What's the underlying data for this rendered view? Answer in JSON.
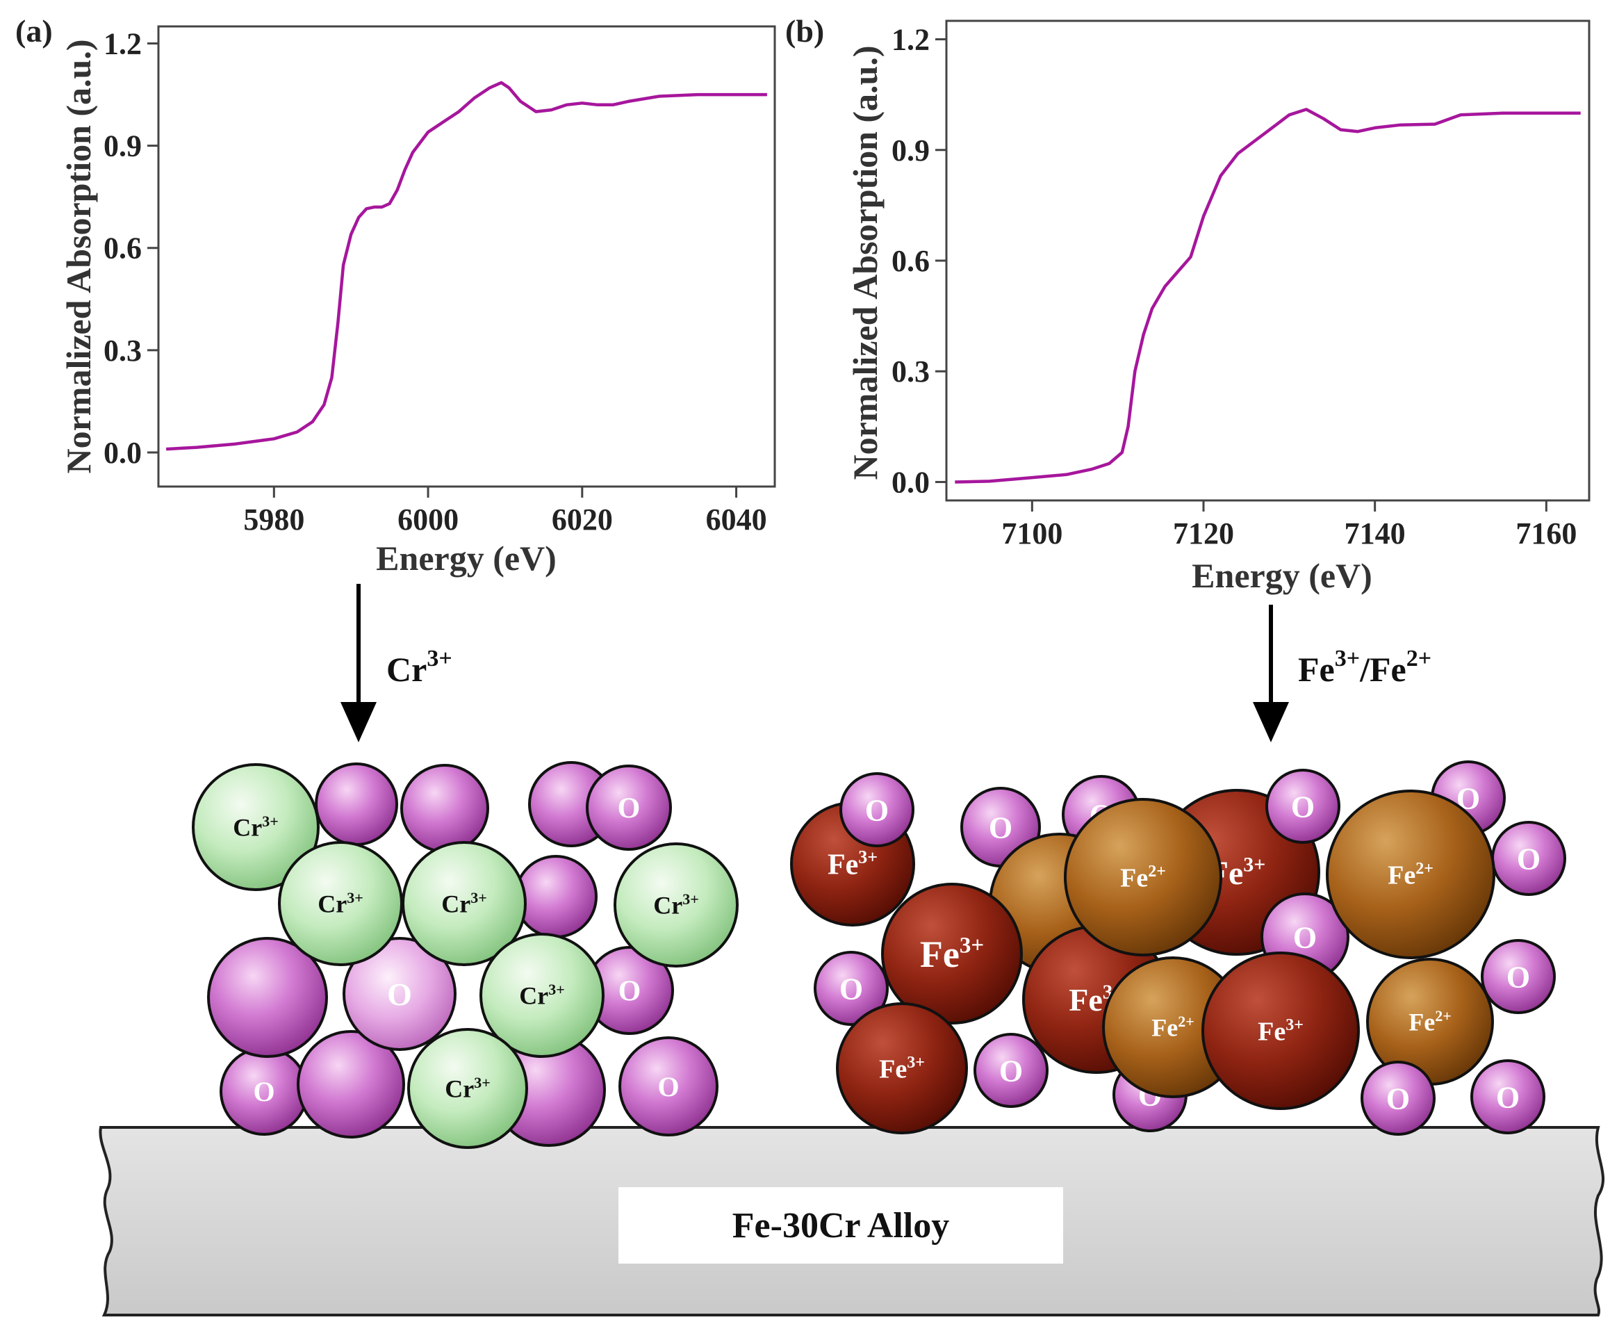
{
  "charts": {
    "a": {
      "panel_label": "(a)",
      "xlabel": "Energy (eV)",
      "ylabel": "Normalized Absorption (a.u.)"
    },
    "b": {
      "panel_label": "(b)",
      "xlabel": "Energy (eV)",
      "ylabel": "Normalized Absorption (a.u.)"
    }
  },
  "chart_data": [
    {
      "type": "line",
      "title": "",
      "xlabel": "Energy (eV)",
      "ylabel": "Normalized Absorption (a.u.)",
      "xlim": [
        5965,
        6045
      ],
      "ylim": [
        -0.1,
        1.25
      ],
      "xticks": [
        5980,
        6000,
        6020,
        6040
      ],
      "yticks": [
        0.0,
        0.3,
        0.6,
        0.9,
        1.2
      ],
      "ytick_labels": [
        "0.0",
        "0.3",
        "0.6",
        "0.9",
        "1.2"
      ],
      "grid": false,
      "color": "#a6169c",
      "series": [
        {
          "x": [
            5966,
            5970,
            5975,
            5980,
            5983,
            5985,
            5986.5,
            5987.5,
            5988.3,
            5989,
            5990,
            5991,
            5992,
            5993,
            5994,
            5995,
            5996,
            5997,
            5998,
            6000,
            6002,
            6004,
            6006,
            6008,
            6009.5,
            6010.5,
            6012,
            6014,
            6016,
            6018,
            6020,
            6022,
            6024,
            6026,
            6030,
            6035,
            6040,
            6044
          ],
          "y": [
            0.01,
            0.015,
            0.025,
            0.04,
            0.06,
            0.09,
            0.14,
            0.22,
            0.38,
            0.55,
            0.64,
            0.69,
            0.715,
            0.72,
            0.72,
            0.73,
            0.77,
            0.83,
            0.88,
            0.94,
            0.97,
            1.0,
            1.04,
            1.07,
            1.085,
            1.07,
            1.03,
            1.0,
            1.005,
            1.02,
            1.025,
            1.02,
            1.02,
            1.03,
            1.045,
            1.05,
            1.05,
            1.05
          ]
        }
      ]
    },
    {
      "type": "line",
      "title": "",
      "xlabel": "Energy (eV)",
      "ylabel": "Normalized Absorption (a.u.)",
      "xlim": [
        7090,
        7165
      ],
      "ylim": [
        -0.05,
        1.25
      ],
      "xticks": [
        7100,
        7120,
        7140,
        7160
      ],
      "yticks": [
        0.0,
        0.3,
        0.6,
        0.9,
        1.2
      ],
      "ytick_labels": [
        "0.0",
        "0.3",
        "0.6",
        "0.9",
        "1.2"
      ],
      "grid": false,
      "color": "#a6169c",
      "series": [
        {
          "x": [
            7091,
            7095,
            7098,
            7100,
            7104,
            7107,
            7109,
            7110.5,
            7111.2,
            7112,
            7113,
            7114,
            7115.5,
            7117,
            7118.5,
            7120,
            7122,
            7124,
            7126,
            7128,
            7130,
            7132,
            7134,
            7136,
            7138,
            7140,
            7143,
            7147,
            7150,
            7155,
            7160,
            7164
          ],
          "y": [
            0.0,
            0.002,
            0.008,
            0.012,
            0.02,
            0.035,
            0.05,
            0.08,
            0.15,
            0.3,
            0.4,
            0.47,
            0.53,
            0.57,
            0.61,
            0.72,
            0.83,
            0.89,
            0.925,
            0.96,
            0.995,
            1.01,
            0.985,
            0.955,
            0.95,
            0.96,
            0.968,
            0.97,
            0.995,
            1.0,
            1.0,
            1.0
          ]
        }
      ]
    }
  ],
  "arrows": {
    "left_label_base": "Cr",
    "left_label_sup": "3+",
    "right_label_base1": "Fe",
    "right_label_sup1": "3+",
    "right_label_sep": "/Fe",
    "right_label_sup2": "2+"
  },
  "substrate": {
    "label": "Fe-30Cr Alloy"
  },
  "colors": {
    "curve": "#a6169c",
    "oxygen": "#c75fc9",
    "chromium": "#b9e6b4",
    "fe3": "#8a1d0c",
    "fe2": "#a65f14",
    "substrate": "#d7d7d7"
  }
}
